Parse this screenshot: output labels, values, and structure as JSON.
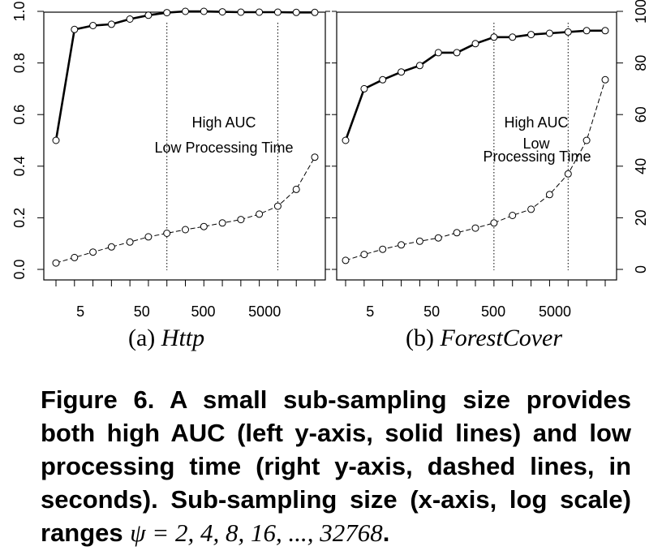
{
  "chart_data": [
    {
      "type": "line",
      "panel_label": "(a)",
      "panel_name": "Http",
      "x_scale": "log",
      "x": [
        2,
        4,
        8,
        16,
        32,
        64,
        128,
        256,
        512,
        1024,
        2048,
        4096,
        8192,
        16384,
        32768
      ],
      "xticks": [
        5,
        50,
        500,
        5000
      ],
      "xtick_labels": [
        "5",
        "50",
        "500",
        "5000"
      ],
      "y_left_ticks": [
        "0.0",
        "0.2",
        "0.4",
        "0.6",
        "0.8",
        "1.0"
      ],
      "y_left_range": [
        0,
        1
      ],
      "y_right_range": [
        0,
        100
      ],
      "series": [
        {
          "axis": "left",
          "style": "solid",
          "values": [
            0.5,
            0.93,
            0.945,
            0.95,
            0.97,
            0.985,
            0.995,
            1.0,
            1.0,
            0.998,
            0.997,
            0.997,
            0.997,
            0.996,
            0.996
          ]
        },
        {
          "axis": "right",
          "style": "dashed",
          "values": [
            2.5,
            4.6,
            6.7,
            8.7,
            10.6,
            12.6,
            14.0,
            15.4,
            16.6,
            18.0,
            19.3,
            21.4,
            24.5,
            31.0,
            43.5
          ]
        }
      ],
      "vlines": [
        128,
        8192
      ],
      "annotations": [
        "High AUC",
        "Low Processing Time"
      ]
    },
    {
      "type": "line",
      "panel_label": "(b)",
      "panel_name": "ForestCover",
      "x_scale": "log",
      "x": [
        2,
        4,
        8,
        16,
        32,
        64,
        128,
        256,
        512,
        1024,
        2048,
        4096,
        8192,
        16384,
        32768
      ],
      "xticks": [
        5,
        50,
        500,
        5000
      ],
      "xtick_labels": [
        "5",
        "50",
        "500",
        "5000"
      ],
      "y_right_ticks": [
        "0",
        "20",
        "40",
        "60",
        "80",
        "100"
      ],
      "y_left_range": [
        0,
        1
      ],
      "y_right_range": [
        0,
        100
      ],
      "series": [
        {
          "axis": "left",
          "style": "solid",
          "values": [
            0.5,
            0.7,
            0.735,
            0.765,
            0.79,
            0.84,
            0.84,
            0.875,
            0.9,
            0.9,
            0.91,
            0.915,
            0.92,
            0.925,
            0.925
          ]
        },
        {
          "axis": "right",
          "style": "dashed",
          "values": [
            3.5,
            5.8,
            7.8,
            9.5,
            10.9,
            12.2,
            14.2,
            16.0,
            18.0,
            20.9,
            23.3,
            29.0,
            37.0,
            50.0,
            73.5
          ]
        }
      ],
      "vlines": [
        512,
        8192
      ],
      "annotations": [
        "High AUC",
        "Low",
        "Processing Time"
      ]
    }
  ],
  "subcaption_a": {
    "label": "(a)",
    "name": "Http"
  },
  "subcaption_b": {
    "label": "(b)",
    "name": "ForestCover"
  },
  "caption": {
    "text": "Figure 6. A small sub-sampling size provides both high AUC (left y-axis, solid lines) and low processing time (right y-axis, dashed lines, in seconds). Sub-sampling size (x-axis, log scale) ranges",
    "math": "ψ = 2, 4, 8, 16, ..., 32768",
    "end": "."
  }
}
